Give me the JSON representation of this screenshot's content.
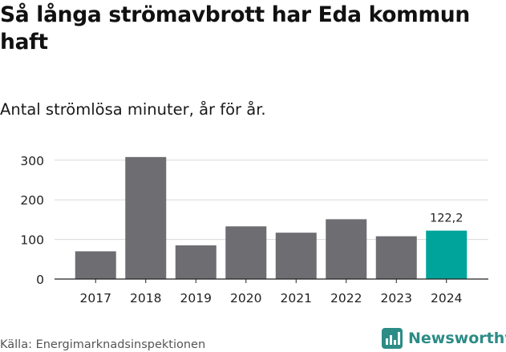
{
  "chart_data": {
    "type": "bar",
    "title": "Så långa strömavbrott har Eda kommun haft",
    "subtitle": "Antal strömlösa minuter, år för år.",
    "categories": [
      "2017",
      "2018",
      "2019",
      "2020",
      "2021",
      "2022",
      "2023",
      "2024"
    ],
    "values": [
      70,
      308,
      85,
      133,
      117,
      151,
      108,
      122.2
    ],
    "highlight_index": 7,
    "highlight_label": "122,2",
    "yticks": [
      0,
      100,
      200,
      300
    ],
    "ylim": [
      0,
      320
    ],
    "xlabel": "",
    "ylabel": "",
    "grid": true,
    "colors": {
      "bar": "#6e6d72",
      "highlight": "#00a49a",
      "grid": "#d9d9d9",
      "axis": "#222222",
      "text": "#222222"
    }
  },
  "footer": {
    "source": "Källa: Energimarknadsinspektionen",
    "brand": "Newsworthy",
    "brand_icon": "bar-chart-logo-icon",
    "brand_color": "#2c8c86"
  }
}
